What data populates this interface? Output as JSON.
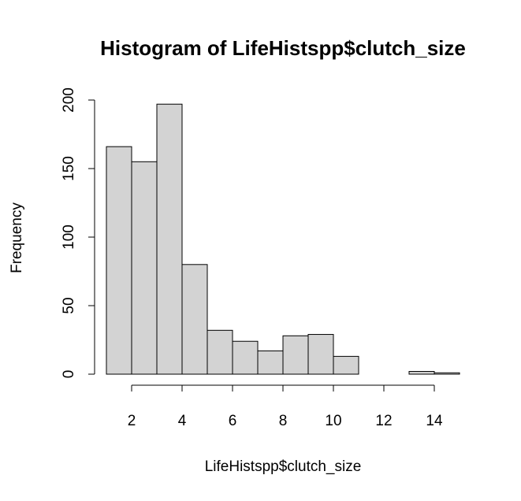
{
  "chart_data": {
    "type": "bar",
    "title": "Histogram of LifeHistspp$clutch_size",
    "xlabel": "LifeHistspp$clutch_size",
    "ylabel": "Frequency",
    "bins": [
      {
        "start": 1,
        "end": 2,
        "value": 166
      },
      {
        "start": 2,
        "end": 3,
        "value": 155
      },
      {
        "start": 3,
        "end": 4,
        "value": 197
      },
      {
        "start": 4,
        "end": 5,
        "value": 80
      },
      {
        "start": 5,
        "end": 6,
        "value": 32
      },
      {
        "start": 6,
        "end": 7,
        "value": 24
      },
      {
        "start": 7,
        "end": 8,
        "value": 17
      },
      {
        "start": 8,
        "end": 9,
        "value": 28
      },
      {
        "start": 9,
        "end": 10,
        "value": 29
      },
      {
        "start": 10,
        "end": 11,
        "value": 13
      },
      {
        "start": 11,
        "end": 12,
        "value": 0
      },
      {
        "start": 12,
        "end": 13,
        "value": 0
      },
      {
        "start": 13,
        "end": 14,
        "value": 2
      },
      {
        "start": 14,
        "end": 15,
        "value": 1
      }
    ],
    "xlim": [
      1,
      15
    ],
    "ylim": [
      0,
      200
    ],
    "xticks": [
      "2",
      "4",
      "6",
      "8",
      "10",
      "12",
      "14"
    ],
    "yticks": [
      "0",
      "50",
      "100",
      "150",
      "200"
    ],
    "bar_color": "#d3d3d3",
    "border_color": "#000000",
    "grid": false
  }
}
